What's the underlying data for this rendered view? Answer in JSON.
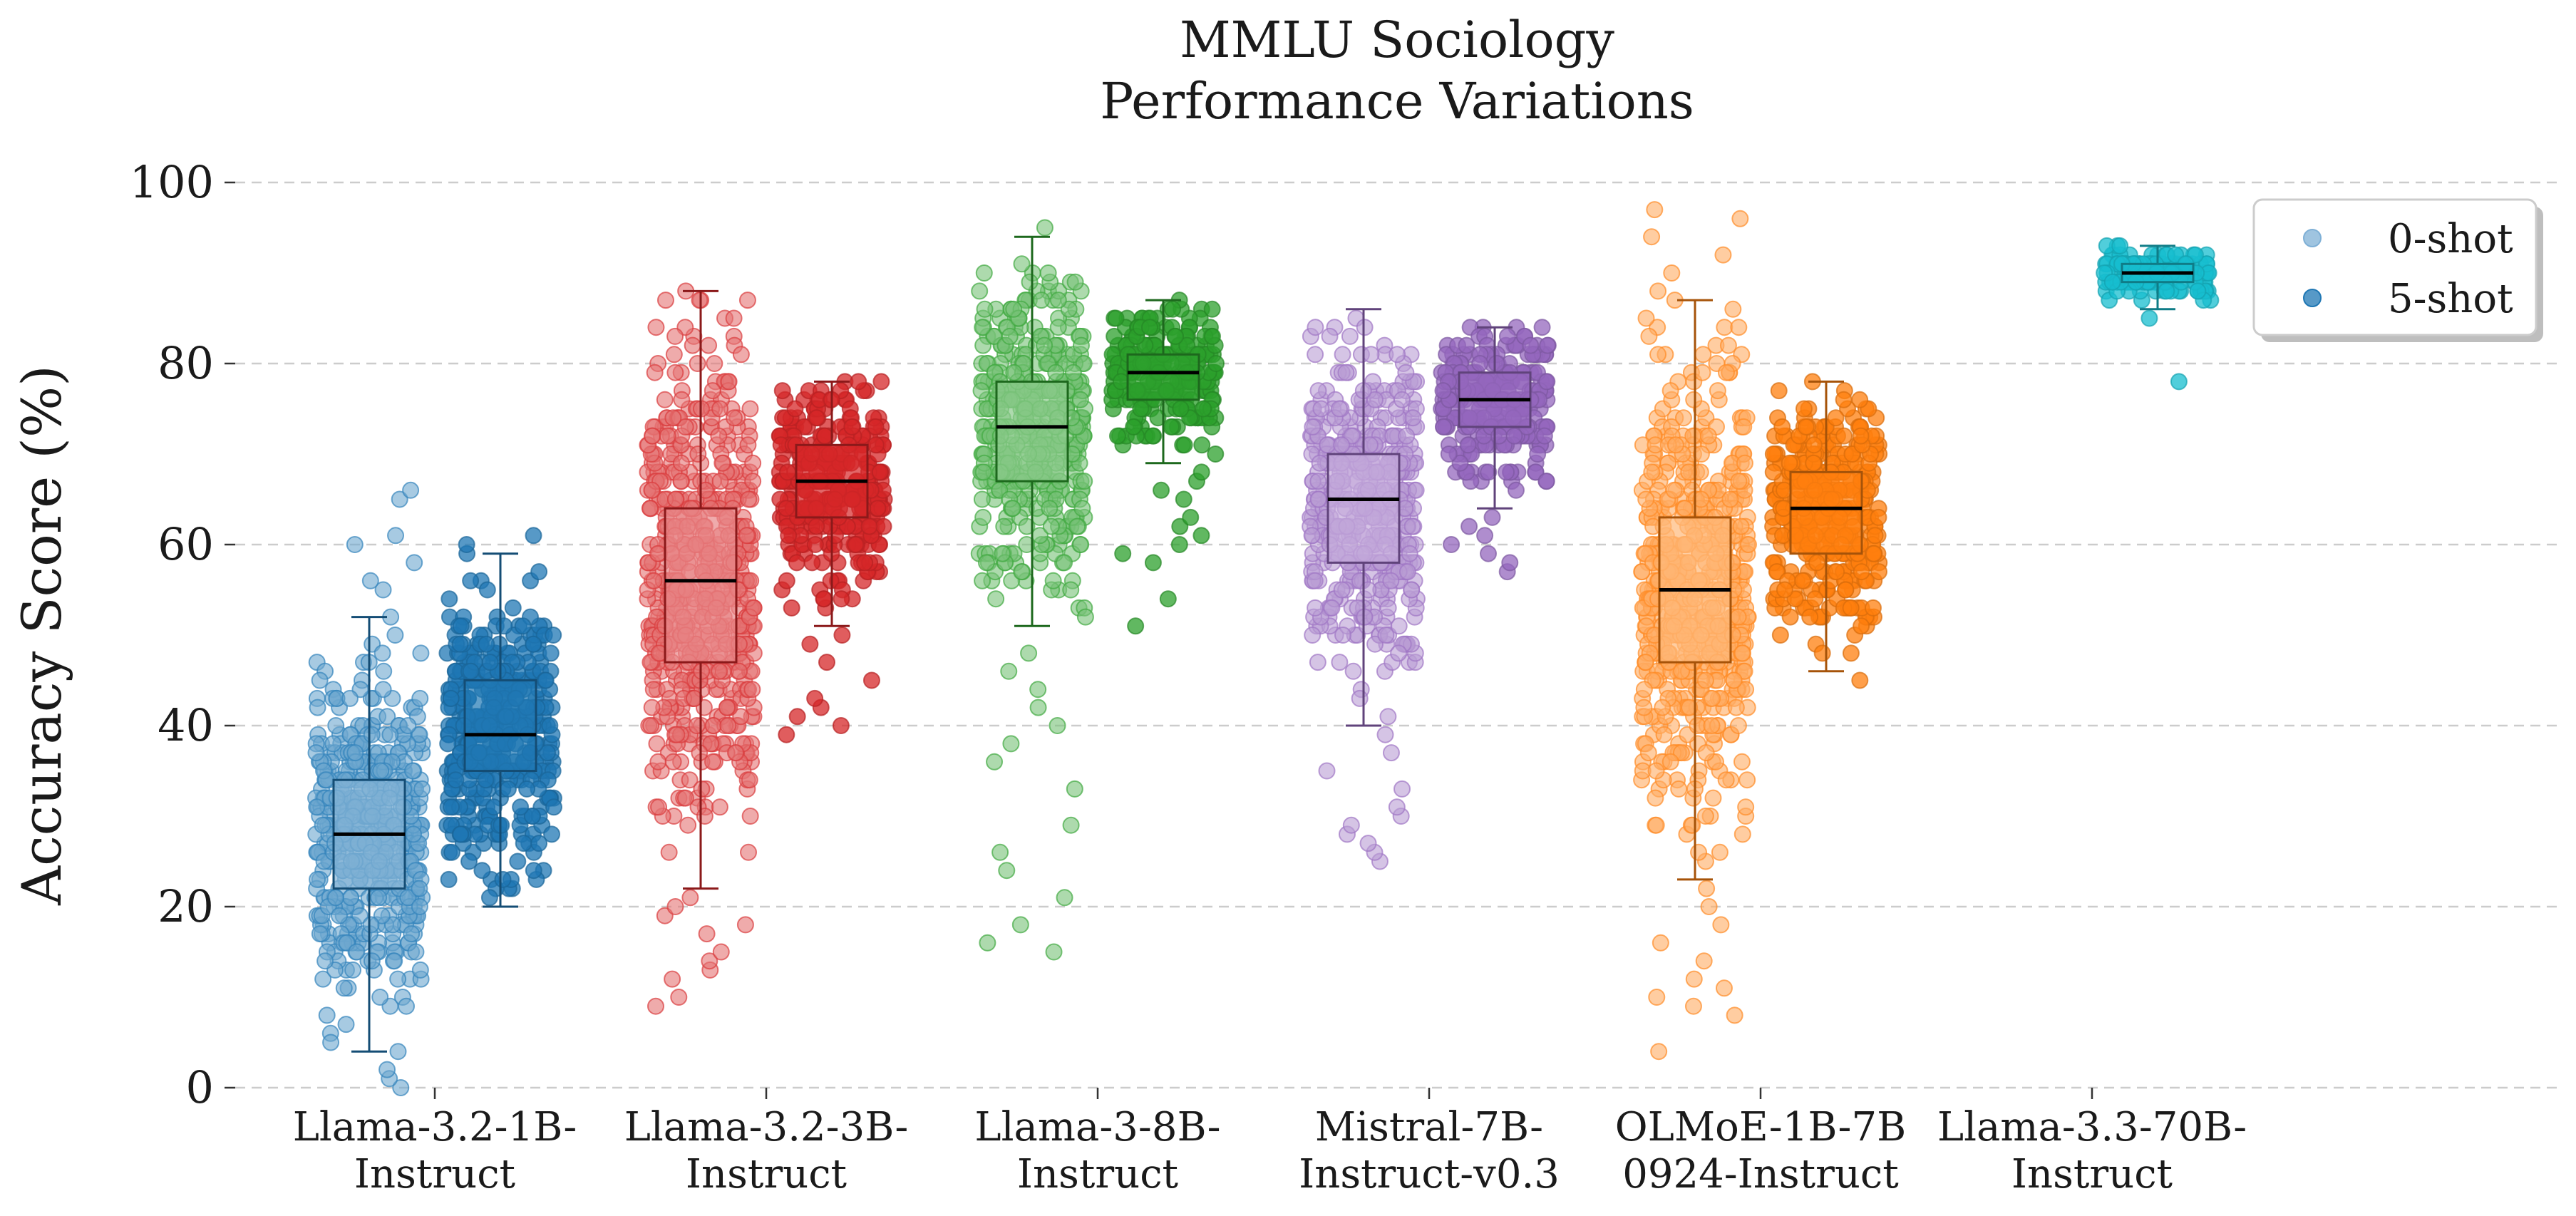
{
  "chart_data": {
    "type": "box-strip",
    "title": [
      "MMLU Sociology",
      "Performance Variations"
    ],
    "ylabel": "Accuracy Score (%)",
    "xlabel": "",
    "ylim": [
      0,
      100
    ],
    "yticks": [
      0,
      20,
      40,
      60,
      80,
      100
    ],
    "grid": "y-dashed",
    "legend": {
      "placement": "top-right",
      "entries": [
        {
          "label": "0-shot",
          "color": "#7fb0d6"
        },
        {
          "label": "5-shot",
          "color": "#1f77b4"
        }
      ]
    },
    "categories": [
      {
        "label": [
          "Llama-3.2-1B-",
          "Instruct"
        ],
        "color": "#1f77b4"
      },
      {
        "label": [
          "Llama-3.2-3B-",
          "Instruct"
        ],
        "color": "#d62728"
      },
      {
        "label": [
          "Llama-3-8B-",
          "Instruct"
        ],
        "color": "#2ca02c"
      },
      {
        "label": [
          "Mistral-7B-",
          "Instruct-v0.3"
        ],
        "color": "#9467bd"
      },
      {
        "label": [
          "OLMoE-1B-7B",
          "0924-Instruct"
        ],
        "color": "#ff7f0e"
      },
      {
        "label": [
          "Llama-3.3-70B-",
          "Instruct"
        ],
        "color": "#17becf"
      }
    ],
    "series": [
      {
        "name": "0-shot",
        "boxes": [
          {
            "min": 4,
            "q1": 22,
            "median": 28,
            "q3": 34,
            "max": 52,
            "outliers": [
              55,
              56,
              58,
              60,
              61,
              65,
              66,
              0,
              1,
              2
            ]
          },
          {
            "min": 22,
            "q1": 47,
            "median": 56,
            "q3": 64,
            "max": 88,
            "outliers": [
              9,
              10,
              12,
              13,
              14,
              15,
              17,
              18,
              19,
              20,
              21
            ]
          },
          {
            "min": 51,
            "q1": 67,
            "median": 73,
            "q3": 78,
            "max": 94,
            "outliers": [
              15,
              16,
              18,
              21,
              24,
              26,
              29,
              33,
              36,
              38,
              40,
              42,
              44,
              46,
              48,
              95
            ]
          },
          {
            "min": 40,
            "q1": 58,
            "median": 65,
            "q3": 70,
            "max": 86,
            "outliers": [
              25,
              26,
              27,
              28,
              29,
              30,
              31,
              33,
              35,
              37,
              39
            ]
          },
          {
            "min": 23,
            "q1": 47,
            "median": 55,
            "q3": 63,
            "max": 87,
            "outliers": [
              4,
              8,
              9,
              10,
              11,
              12,
              14,
              16,
              18,
              20,
              22,
              88,
              90,
              92,
              94,
              96,
              97
            ]
          },
          null
        ]
      },
      {
        "name": "5-shot",
        "boxes": [
          {
            "min": 20,
            "q1": 35,
            "median": 39,
            "q3": 45,
            "max": 59,
            "outliers": [
              60,
              61
            ]
          },
          {
            "min": 51,
            "q1": 63,
            "median": 67,
            "q3": 71,
            "max": 78,
            "outliers": [
              39,
              40,
              41,
              42,
              43,
              45,
              47,
              49,
              50
            ]
          },
          {
            "min": 69,
            "q1": 76,
            "median": 79,
            "q3": 81,
            "max": 87,
            "outliers": [
              51,
              54,
              58,
              59,
              60,
              61,
              62,
              63,
              65,
              66,
              67,
              68
            ]
          },
          {
            "min": 64,
            "q1": 73,
            "median": 76,
            "q3": 79,
            "max": 84,
            "outliers": [
              57,
              58,
              59,
              60,
              61,
              62,
              63
            ]
          },
          {
            "min": 46,
            "q1": 59,
            "median": 64,
            "q3": 68,
            "max": 78,
            "outliers": [
              45
            ]
          },
          {
            "min": 86,
            "q1": 89,
            "median": 90,
            "q3": 91,
            "max": 93,
            "outliers": [
              85,
              78
            ]
          }
        ]
      }
    ]
  }
}
